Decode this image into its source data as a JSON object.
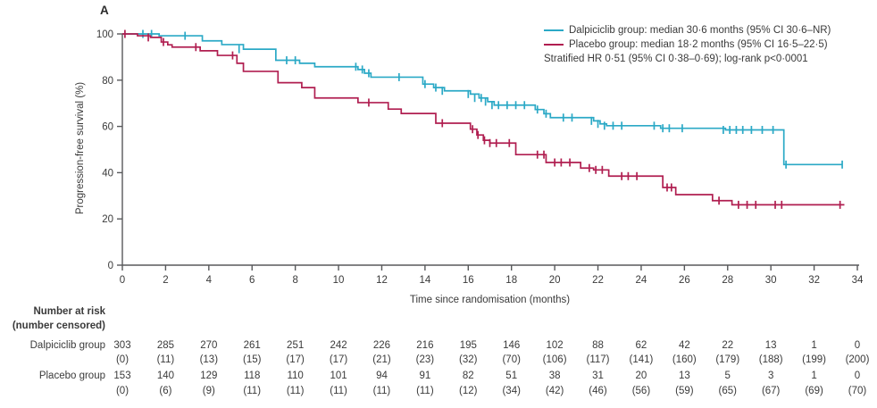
{
  "panel_label": "A",
  "colors": {
    "dalpiciclib": "#2ba9c6",
    "placebo": "#b01e50",
    "axis": "#58595b",
    "text": "#3a3a3a"
  },
  "legend": {
    "entries": [
      {
        "label": "Dalpiciclib group: median 30·6 months (95% CI 30·6–NR)",
        "color": "#2ba9c6"
      },
      {
        "label": "Placebo group: median 18·2 months (95% CI 16·5–22·5)",
        "color": "#b01e50"
      }
    ],
    "note": "Stratified HR 0·51 (95% CI 0·38–0·69); log-rank p<0·0001"
  },
  "chart_data": {
    "type": "line",
    "subtype": "kaplan-meier-step",
    "title": "",
    "xlabel": "Time since randomisation (months)",
    "ylabel": "Progression-free survival (%)",
    "xlim": [
      0,
      34
    ],
    "ylim": [
      0,
      100
    ],
    "xticks": [
      0,
      2,
      4,
      6,
      8,
      10,
      12,
      14,
      16,
      18,
      20,
      22,
      24,
      26,
      28,
      30,
      32,
      34
    ],
    "yticks": [
      0,
      20,
      40,
      60,
      80,
      100
    ],
    "grid": false,
    "legend_position": "top-right",
    "series": [
      {
        "name": "Dalpiciclib group",
        "color": "#2ba9c6",
        "end": 33.3,
        "steps": [
          [
            0,
            100
          ],
          [
            1.7,
            99.2
          ],
          [
            3.7,
            97.0
          ],
          [
            4.6,
            95.4
          ],
          [
            5.6,
            93.4
          ],
          [
            7.1,
            88.6
          ],
          [
            8.2,
            87.3
          ],
          [
            8.9,
            85.8
          ],
          [
            10.9,
            84.6
          ],
          [
            11.2,
            83.0
          ],
          [
            11.5,
            81.3
          ],
          [
            13.9,
            78.3
          ],
          [
            14.4,
            76.8
          ],
          [
            14.9,
            75.4
          ],
          [
            16.1,
            74.0
          ],
          [
            16.5,
            72.3
          ],
          [
            16.9,
            70.7
          ],
          [
            17.2,
            69.2
          ],
          [
            19.1,
            67.3
          ],
          [
            19.5,
            65.5
          ],
          [
            19.8,
            63.8
          ],
          [
            21.8,
            62.4
          ],
          [
            22.1,
            61.1
          ],
          [
            22.4,
            60.3
          ],
          [
            24.9,
            59.2
          ],
          [
            27.9,
            58.5
          ],
          [
            30.6,
            43.5
          ]
        ],
        "censors": [
          [
            0.95,
            100
          ],
          [
            1.35,
            100
          ],
          [
            2.9,
            99.2
          ],
          [
            5.4,
            93.4
          ],
          [
            7.6,
            88.6
          ],
          [
            8.0,
            88.6
          ],
          [
            10.8,
            85.8
          ],
          [
            11.1,
            84.6
          ],
          [
            11.4,
            83.0
          ],
          [
            12.8,
            81.3
          ],
          [
            14.0,
            78.3
          ],
          [
            14.5,
            76.8
          ],
          [
            14.8,
            75.4
          ],
          [
            16.0,
            74.0
          ],
          [
            16.3,
            72.3
          ],
          [
            16.6,
            72.3
          ],
          [
            16.8,
            70.7
          ],
          [
            17.1,
            69.2
          ],
          [
            17.4,
            69.2
          ],
          [
            17.8,
            69.2
          ],
          [
            18.2,
            69.2
          ],
          [
            18.6,
            69.2
          ],
          [
            19.2,
            67.3
          ],
          [
            19.6,
            65.5
          ],
          [
            20.4,
            63.8
          ],
          [
            20.8,
            63.8
          ],
          [
            21.7,
            62.4
          ],
          [
            22.0,
            61.1
          ],
          [
            22.3,
            60.3
          ],
          [
            22.7,
            60.3
          ],
          [
            23.1,
            60.3
          ],
          [
            24.6,
            60.3
          ],
          [
            25.0,
            59.2
          ],
          [
            25.3,
            59.2
          ],
          [
            25.9,
            59.2
          ],
          [
            27.8,
            58.5
          ],
          [
            28.1,
            58.5
          ],
          [
            28.4,
            58.5
          ],
          [
            28.7,
            58.5
          ],
          [
            29.1,
            58.5
          ],
          [
            29.6,
            58.5
          ],
          [
            30.1,
            58.5
          ],
          [
            30.7,
            43.5
          ],
          [
            33.3,
            43.5
          ]
        ]
      },
      {
        "name": "Placebo group",
        "color": "#b01e50",
        "end": 33.4,
        "steps": [
          [
            0,
            100
          ],
          [
            0.7,
            99.2
          ],
          [
            1.3,
            98.5
          ],
          [
            1.8,
            96.5
          ],
          [
            2.1,
            95.3
          ],
          [
            2.3,
            94.3
          ],
          [
            3.6,
            92.7
          ],
          [
            4.4,
            90.7
          ],
          [
            5.3,
            87.3
          ],
          [
            5.6,
            83.8
          ],
          [
            7.2,
            78.9
          ],
          [
            8.3,
            76.8
          ],
          [
            8.9,
            72.3
          ],
          [
            10.9,
            70.3
          ],
          [
            12.3,
            67.5
          ],
          [
            12.9,
            65.6
          ],
          [
            14.5,
            61.4
          ],
          [
            16.1,
            58.8
          ],
          [
            16.4,
            56.3
          ],
          [
            16.7,
            54.0
          ],
          [
            17.0,
            52.8
          ],
          [
            18.2,
            47.8
          ],
          [
            19.6,
            44.4
          ],
          [
            21.2,
            42.0
          ],
          [
            21.8,
            41.2
          ],
          [
            22.5,
            38.5
          ],
          [
            25.0,
            33.6
          ],
          [
            25.6,
            30.5
          ],
          [
            27.3,
            27.9
          ],
          [
            28.2,
            26.1
          ]
        ],
        "censors": [
          [
            0.12,
            100
          ],
          [
            1.2,
            98.5
          ],
          [
            1.9,
            96.5
          ],
          [
            3.4,
            94.3
          ],
          [
            5.1,
            90.7
          ],
          [
            11.4,
            70.3
          ],
          [
            14.8,
            61.4
          ],
          [
            16.2,
            58.8
          ],
          [
            16.45,
            56.3
          ],
          [
            16.75,
            54.0
          ],
          [
            17.0,
            52.8
          ],
          [
            17.3,
            52.8
          ],
          [
            17.9,
            52.8
          ],
          [
            19.2,
            47.8
          ],
          [
            19.5,
            47.8
          ],
          [
            20.0,
            44.4
          ],
          [
            20.3,
            44.4
          ],
          [
            20.7,
            44.4
          ],
          [
            21.6,
            42.0
          ],
          [
            21.9,
            41.2
          ],
          [
            22.2,
            41.2
          ],
          [
            23.1,
            38.5
          ],
          [
            23.4,
            38.5
          ],
          [
            23.8,
            38.5
          ],
          [
            25.2,
            33.6
          ],
          [
            25.4,
            33.6
          ],
          [
            27.6,
            27.9
          ],
          [
            28.5,
            26.1
          ],
          [
            28.9,
            26.1
          ],
          [
            29.3,
            26.1
          ],
          [
            30.2,
            26.1
          ],
          [
            30.5,
            26.1
          ],
          [
            33.2,
            26.1
          ]
        ]
      }
    ]
  },
  "risk_table": {
    "header_line1": "Number at risk",
    "header_line2": "(number censored)",
    "times": [
      0,
      2,
      4,
      6,
      8,
      10,
      12,
      14,
      16,
      18,
      20,
      22,
      24,
      26,
      28,
      30,
      32,
      34
    ],
    "rows": [
      {
        "label": "Dalpiciclib group",
        "at_risk": [
          "303",
          "285",
          "270",
          "261",
          "251",
          "242",
          "226",
          "216",
          "195",
          "146",
          "102",
          "88",
          "62",
          "42",
          "22",
          "13",
          "1",
          "0"
        ],
        "censored": [
          "(0)",
          "(11)",
          "(13)",
          "(15)",
          "(17)",
          "(17)",
          "(21)",
          "(23)",
          "(32)",
          "(70)",
          "(106)",
          "(117)",
          "(141)",
          "(160)",
          "(179)",
          "(188)",
          "(199)",
          "(200)"
        ]
      },
      {
        "label": "Placebo group",
        "at_risk": [
          "153",
          "140",
          "129",
          "118",
          "110",
          "101",
          "94",
          "91",
          "82",
          "51",
          "38",
          "31",
          "20",
          "13",
          "5",
          "3",
          "1",
          "0"
        ],
        "censored": [
          "(0)",
          "(6)",
          "(9)",
          "(11)",
          "(11)",
          "(11)",
          "(11)",
          "(11)",
          "(12)",
          "(34)",
          "(42)",
          "(46)",
          "(56)",
          "(59)",
          "(65)",
          "(67)",
          "(69)",
          "(70)"
        ]
      }
    ]
  }
}
